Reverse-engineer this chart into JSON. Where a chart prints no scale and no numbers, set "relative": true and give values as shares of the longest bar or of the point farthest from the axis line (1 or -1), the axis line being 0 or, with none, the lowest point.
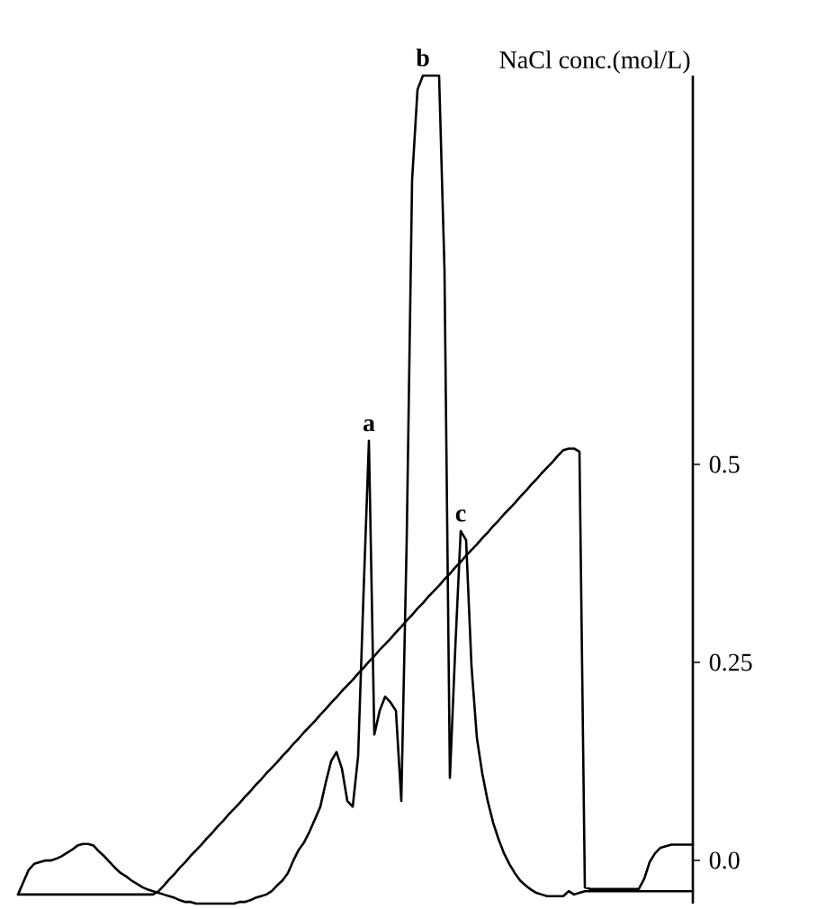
{
  "chart_data": [
    {
      "type": "line",
      "relative": true,
      "categories": [
        null,
        null,
        null,
        null,
        null,
        null,
        null,
        null,
        null,
        null,
        null,
        null,
        null,
        null,
        null,
        null,
        null,
        null,
        null,
        null,
        null,
        null,
        null,
        null,
        null,
        null,
        null,
        null,
        null,
        null,
        null,
        null,
        null,
        null,
        null,
        null,
        null,
        null,
        null,
        null,
        null,
        null,
        null,
        null,
        null,
        null,
        null,
        null,
        null,
        null,
        null,
        null,
        null,
        null,
        null,
        null,
        null,
        null,
        null,
        null,
        null,
        null,
        null,
        null,
        null,
        null,
        null,
        null,
        null,
        null,
        null,
        null,
        null,
        null,
        null,
        null,
        null,
        null,
        null,
        null,
        null,
        null,
        null,
        null,
        null,
        null,
        null,
        null,
        null,
        null,
        null,
        null,
        null,
        null,
        null,
        null,
        null,
        null,
        null,
        null,
        null,
        null,
        null,
        null,
        null,
        null,
        null,
        null,
        null,
        null,
        null,
        null,
        null,
        null,
        null,
        null,
        null,
        null,
        null,
        null,
        null,
        null,
        null,
        null,
        null,
        null
      ],
      "series": [
        {
          "color": "#000000",
          "values": [
            0.011,
            0.026,
            0.041,
            0.048,
            0.05,
            0.052,
            0.052,
            0.054,
            0.057,
            0.061,
            0.065,
            0.07,
            0.072,
            0.072,
            0.07,
            0.063,
            0.057,
            0.05,
            0.043,
            0.037,
            0.033,
            0.028,
            0.024,
            0.02,
            0.017,
            0.015,
            0.013,
            0.011,
            0.009,
            0.007,
            0.004,
            0.002,
            0.002,
            0,
            0,
            0,
            0,
            0,
            0,
            0,
            0,
            0.002,
            0.002,
            0.004,
            0.007,
            0.009,
            0.011,
            0.015,
            0.022,
            0.028,
            0.037,
            0.052,
            0.065,
            0.074,
            0.087,
            0.102,
            0.117,
            0.146,
            0.172,
            0.183,
            0.163,
            0.124,
            0.117,
            0.178,
            0.374,
            0.559,
            0.204,
            0.233,
            0.25,
            0.243,
            0.233,
            0.124,
            0.439,
            0.874,
            0.983,
            1,
            1,
            1,
            1,
            0.765,
            0.152,
            0.309,
            0.45,
            0.439,
            0.287,
            0.2,
            0.157,
            0.124,
            0.098,
            0.078,
            0.061,
            0.048,
            0.037,
            0.028,
            0.022,
            0.017,
            0.013,
            0.011,
            0.009,
            0.009,
            0.009,
            0.009,
            0.015,
            0.011,
            0.013,
            0.015,
            0.015,
            0.015,
            0.015,
            0.015,
            0.015,
            0.015,
            0.015,
            0.015,
            0.015,
            0.015,
            0.015,
            0.015,
            0.015,
            0.015,
            0.015,
            0.015,
            0.015,
            0.015,
            0.015,
            0.015
          ]
        }
      ],
      "annotations": [
        {
          "text": "a",
          "y": 0.559
        },
        {
          "text": "b",
          "y": 1
        },
        {
          "text": "c",
          "y": 0.45
        }
      ]
    },
    {
      "type": "line",
      "categories": [
        null,
        null,
        null,
        null,
        null,
        null,
        null,
        null,
        null,
        null,
        null,
        null,
        null,
        null,
        null,
        null,
        null,
        null,
        null,
        null,
        null,
        null,
        null,
        null,
        null,
        null,
        null,
        null,
        null,
        null,
        null,
        null,
        null,
        null,
        null,
        null,
        null,
        null,
        null,
        null,
        null,
        null,
        null,
        null,
        null,
        null,
        null,
        null,
        null,
        null,
        null,
        null,
        null,
        null,
        null,
        null,
        null,
        null,
        null,
        null,
        null,
        null,
        null,
        null,
        null,
        null,
        null,
        null,
        null,
        null,
        null,
        null,
        null,
        null,
        null,
        null,
        null,
        null,
        null,
        null,
        null,
        null,
        null,
        null,
        null,
        null,
        null,
        null,
        null,
        null,
        null,
        null,
        null,
        null,
        null,
        null,
        null,
        null,
        null,
        null,
        null,
        null,
        null,
        null,
        null,
        null,
        null,
        null,
        null,
        null,
        null,
        null,
        null,
        null,
        null,
        null,
        null,
        null,
        null,
        null,
        null,
        null,
        null,
        null,
        null,
        null
      ],
      "series": [
        {
          "color": "#000000",
          "values": [
            -0.043,
            -0.043,
            -0.043,
            -0.043,
            -0.043,
            -0.043,
            -0.043,
            -0.043,
            -0.043,
            -0.043,
            -0.043,
            -0.043,
            -0.043,
            -0.043,
            -0.043,
            -0.043,
            -0.043,
            -0.043,
            -0.043,
            -0.043,
            -0.043,
            -0.043,
            -0.043,
            -0.043,
            -0.043,
            -0.043,
            -0.039,
            -0.032,
            -0.024,
            -0.017,
            -0.009,
            -0.002,
            0.006,
            0.013,
            0.02,
            0.028,
            0.035,
            0.043,
            0.05,
            0.058,
            0.065,
            0.072,
            0.08,
            0.087,
            0.095,
            0.102,
            0.11,
            0.117,
            0.124,
            0.132,
            0.139,
            0.147,
            0.154,
            0.162,
            0.169,
            0.176,
            0.184,
            0.191,
            0.199,
            0.206,
            0.214,
            0.221,
            0.228,
            0.236,
            0.243,
            0.251,
            0.258,
            0.266,
            0.273,
            0.28,
            0.288,
            0.295,
            0.303,
            0.31,
            0.318,
            0.325,
            0.333,
            0.34,
            0.347,
            0.355,
            0.362,
            0.37,
            0.377,
            0.385,
            0.392,
            0.399,
            0.407,
            0.414,
            0.422,
            0.429,
            0.437,
            0.444,
            0.451,
            0.459,
            0.466,
            0.474,
            0.481,
            0.489,
            0.496,
            0.503,
            0.511,
            0.518,
            0.52,
            0.52,
            0.516,
            -0.034,
            -0.036,
            -0.036,
            -0.036,
            -0.036,
            -0.036,
            -0.036,
            -0.036,
            -0.036,
            -0.036,
            -0.036,
            -0.023,
            -0.002,
            0.009,
            0.016,
            0.018,
            0.02,
            0.02,
            0.02,
            0.02,
            0.02
          ]
        }
      ],
      "ylabel": "NaCl conc.(mol/L)",
      "ylim": [
        -0.0545,
        0.991
      ],
      "yticks": [
        {
          "value": 0,
          "label": "0.0"
        },
        0.25,
        0.5
      ]
    }
  ]
}
